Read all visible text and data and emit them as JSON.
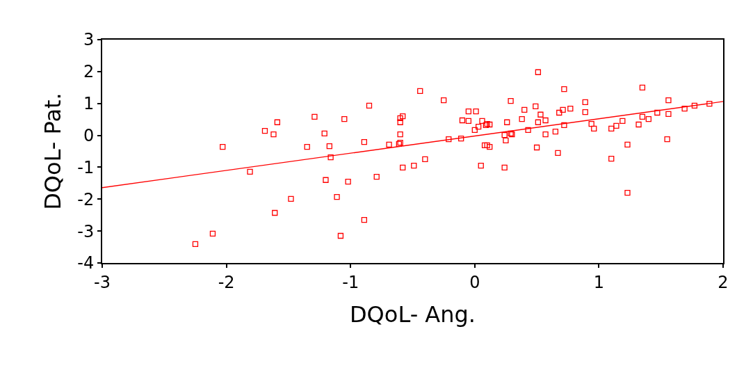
{
  "chart_data": {
    "type": "scatter",
    "xlabel": "DQoL- Ang.",
    "ylabel": "DQoL- Pat.",
    "xlim": [
      -3,
      2
    ],
    "ylim": [
      -4,
      3
    ],
    "xticks": [
      -3,
      -2,
      -1,
      0,
      1,
      2
    ],
    "yticks": [
      -4,
      -3,
      -2,
      -1,
      0,
      1,
      2,
      3
    ],
    "marker": "square",
    "series": [
      {
        "color": "#ff0000",
        "x": [
          -2.25,
          -2.11,
          -2.03,
          -1.81,
          -1.69,
          -1.59,
          -1.62,
          -1.48,
          -1.61,
          -1.35,
          -1.29,
          -1.21,
          -1.05,
          -0.85,
          -1.17,
          -1.16,
          -1.2,
          -1.02,
          -0.79,
          -1.11,
          -0.89,
          -1.08,
          -0.89,
          -0.69,
          -0.6,
          -0.6,
          -0.58,
          -0.6,
          -0.6,
          -0.61,
          -0.58,
          -0.49,
          -0.4,
          -0.44,
          -0.25,
          -0.21,
          -0.11,
          -0.1,
          -0.05,
          0.01,
          -0.05,
          0.06,
          0.03,
          0.0,
          0.05,
          0.08,
          0.1,
          0.12,
          0.1,
          0.12,
          0.09,
          0.24,
          0.25,
          0.24,
          0.26,
          0.29,
          0.29,
          0.3,
          0.51,
          0.72,
          0.4,
          0.49,
          0.38,
          0.53,
          0.51,
          0.57,
          0.43,
          0.57,
          0.65,
          0.72,
          0.71,
          0.68,
          0.77,
          0.89,
          0.89,
          0.94,
          0.96,
          0.5,
          0.67,
          1.1,
          1.14,
          1.19,
          1.23,
          1.1,
          1.23,
          1.35,
          1.32,
          1.35,
          1.4,
          1.47,
          1.56,
          1.56,
          1.55,
          1.69,
          1.77,
          1.89
        ],
        "values": [
          -3.41,
          -3.08,
          -0.36,
          -1.14,
          0.14,
          0.41,
          0.03,
          -1.99,
          -2.43,
          -0.36,
          0.58,
          0.06,
          0.51,
          0.93,
          -0.34,
          -0.69,
          -1.4,
          -1.45,
          -1.3,
          -1.93,
          -2.65,
          -3.15,
          -0.21,
          -0.29,
          0.54,
          0.41,
          0.6,
          0.03,
          -0.23,
          -0.27,
          -1.01,
          -0.95,
          -0.75,
          1.39,
          1.1,
          -0.12,
          -0.1,
          0.47,
          0.75,
          0.75,
          0.45,
          0.45,
          0.27,
          0.17,
          -0.95,
          -0.31,
          -0.31,
          -0.36,
          0.36,
          0.34,
          0.32,
          0.01,
          -0.16,
          -1.01,
          0.41,
          1.08,
          0.06,
          0.03,
          1.98,
          1.45,
          0.8,
          0.91,
          0.51,
          0.65,
          0.41,
          0.47,
          0.17,
          0.03,
          0.12,
          0.32,
          0.8,
          0.71,
          0.84,
          1.04,
          0.73,
          0.36,
          0.21,
          -0.38,
          -0.55,
          0.21,
          0.3,
          0.45,
          -0.29,
          -0.73,
          -1.8,
          1.5,
          0.34,
          0.58,
          0.51,
          0.71,
          1.1,
          0.67,
          -0.12,
          0.84,
          0.93,
          0.99
        ]
      },
      {
        "type": "line",
        "color": "#ff0000",
        "marker": "none",
        "line_style": "solid",
        "x": [
          -3,
          2
        ],
        "values": [
          -1.64,
          1.06
        ]
      }
    ]
  }
}
